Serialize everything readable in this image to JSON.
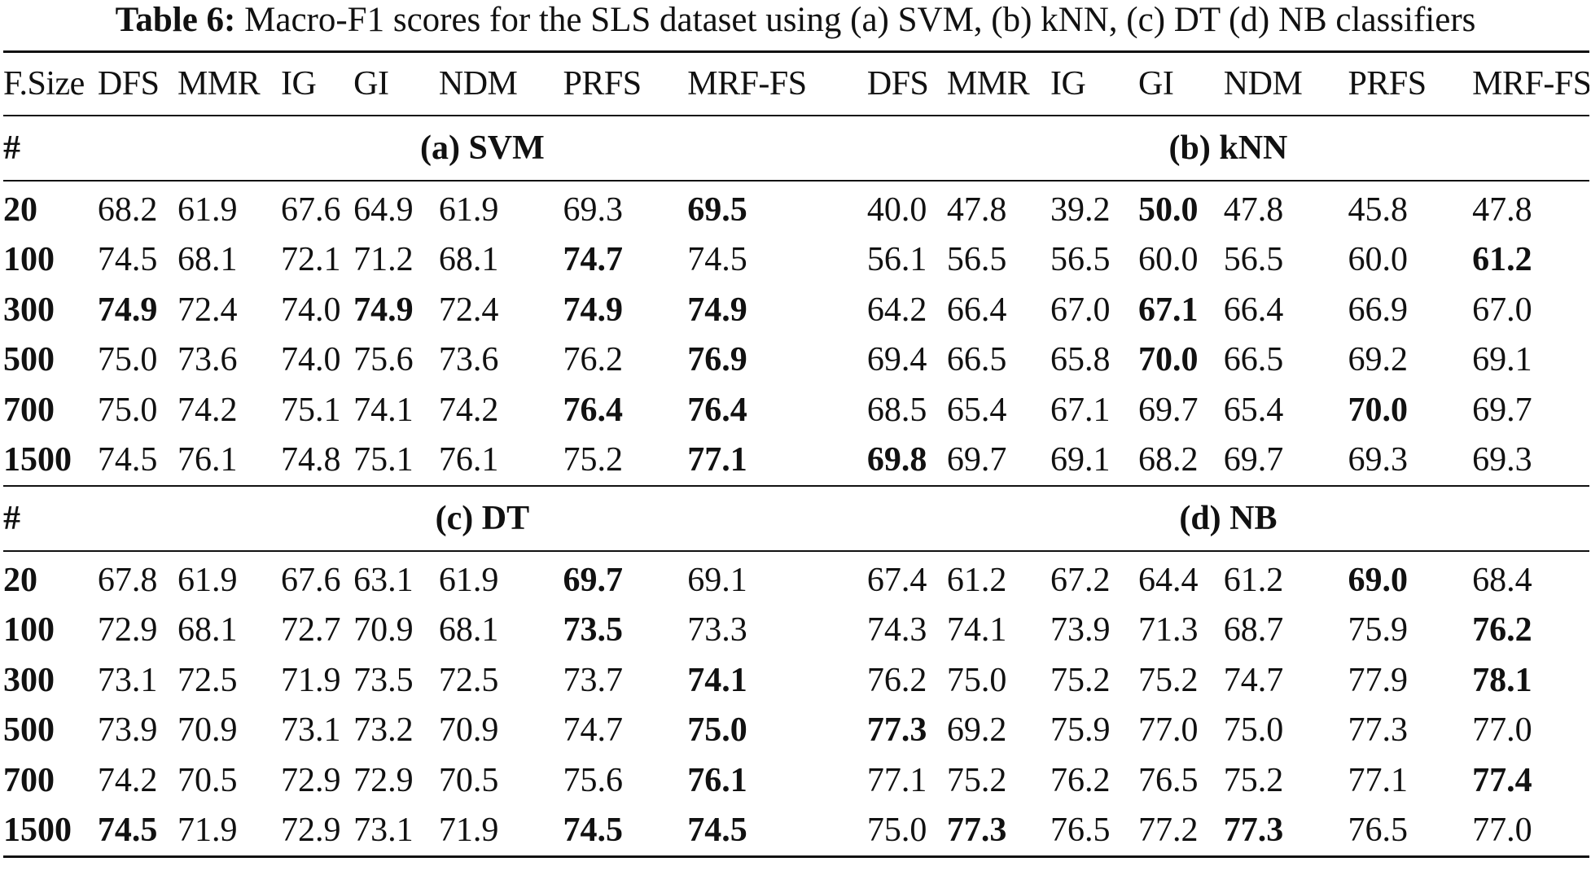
{
  "caption": {
    "label": "Table 6:",
    "text": "Macro-F1 scores for the SLS dataset using (a) SVM, (b) kNN, (c) DT (d) NB classifiers"
  },
  "header": [
    "F.Size",
    "DFS",
    "MMR",
    "IG",
    "GI",
    "NDM",
    "PRFS",
    "MRF-FS",
    "DFS",
    "MMR",
    "IG",
    "GI",
    "NDM",
    "PRFS",
    "MRF-FS"
  ],
  "blocks": [
    {
      "hash": "#",
      "left_title": "(a) SVM",
      "right_title": "(b) kNN",
      "rows": [
        {
          "size": "20",
          "values": [
            "68.2",
            "61.9",
            "67.6",
            "64.9",
            "61.9",
            "69.3",
            "69.5",
            "40.0",
            "47.8",
            "39.2",
            "50.0",
            "47.8",
            "45.8",
            "47.8"
          ],
          "bold": [
            6,
            10
          ]
        },
        {
          "size": "100",
          "values": [
            "74.5",
            "68.1",
            "72.1",
            "71.2",
            "68.1",
            "74.7",
            "74.5",
            "56.1",
            "56.5",
            "56.5",
            "60.0",
            "56.5",
            "60.0",
            "61.2"
          ],
          "bold": [
            5,
            13
          ]
        },
        {
          "size": "300",
          "values": [
            "74.9",
            "72.4",
            "74.0",
            "74.9",
            "72.4",
            "74.9",
            "74.9",
            "64.2",
            "66.4",
            "67.0",
            "67.1",
            "66.4",
            "66.9",
            "67.0"
          ],
          "bold": [
            0,
            3,
            5,
            6,
            10
          ]
        },
        {
          "size": "500",
          "values": [
            "75.0",
            "73.6",
            "74.0",
            "75.6",
            "73.6",
            "76.2",
            "76.9",
            "69.4",
            "66.5",
            "65.8",
            "70.0",
            "66.5",
            "69.2",
            "69.1"
          ],
          "bold": [
            6,
            10
          ]
        },
        {
          "size": "700",
          "values": [
            "75.0",
            "74.2",
            "75.1",
            "74.1",
            "74.2",
            "76.4",
            "76.4",
            "68.5",
            "65.4",
            "67.1",
            "69.7",
            "65.4",
            "70.0",
            "69.7"
          ],
          "bold": [
            5,
            6,
            12
          ]
        },
        {
          "size": "1500",
          "values": [
            "74.5",
            "76.1",
            "74.8",
            "75.1",
            "76.1",
            "75.2",
            "77.1",
            "69.8",
            "69.7",
            "69.1",
            "68.2",
            "69.7",
            "69.3",
            "69.3"
          ],
          "bold": [
            6,
            7
          ]
        }
      ]
    },
    {
      "hash": "#",
      "left_title": "(c) DT",
      "right_title": "(d) NB",
      "rows": [
        {
          "size": "20",
          "values": [
            "67.8",
            "61.9",
            "67.6",
            "63.1",
            "61.9",
            "69.7",
            "69.1",
            "67.4",
            "61.2",
            "67.2",
            "64.4",
            "61.2",
            "69.0",
            "68.4"
          ],
          "bold": [
            5,
            12
          ]
        },
        {
          "size": "100",
          "values": [
            "72.9",
            "68.1",
            "72.7",
            "70.9",
            "68.1",
            "73.5",
            "73.3",
            "74.3",
            "74.1",
            "73.9",
            "71.3",
            "68.7",
            "75.9",
            "76.2"
          ],
          "bold": [
            5,
            13
          ]
        },
        {
          "size": "300",
          "values": [
            "73.1",
            "72.5",
            "71.9",
            "73.5",
            "72.5",
            "73.7",
            "74.1",
            "76.2",
            "75.0",
            "75.2",
            "75.2",
            "74.7",
            "77.9",
            "78.1"
          ],
          "bold": [
            6,
            13
          ]
        },
        {
          "size": "500",
          "values": [
            "73.9",
            "70.9",
            "73.1",
            "73.2",
            "70.9",
            "74.7",
            "75.0",
            "77.3",
            "69.2",
            "75.9",
            "77.0",
            "75.0",
            "77.3",
            "77.0"
          ],
          "bold": [
            6,
            7
          ]
        },
        {
          "size": "700",
          "values": [
            "74.2",
            "70.5",
            "72.9",
            "72.9",
            "70.5",
            "75.6",
            "76.1",
            "77.1",
            "75.2",
            "76.2",
            "76.5",
            "75.2",
            "77.1",
            "77.4"
          ],
          "bold": [
            6,
            13
          ]
        },
        {
          "size": "1500",
          "values": [
            "74.5",
            "71.9",
            "72.9",
            "73.1",
            "71.9",
            "74.5",
            "74.5",
            "75.0",
            "77.3",
            "76.5",
            "77.2",
            "77.3",
            "76.5",
            "77.0"
          ],
          "bold": [
            0,
            5,
            6,
            8,
            11
          ]
        }
      ]
    }
  ]
}
